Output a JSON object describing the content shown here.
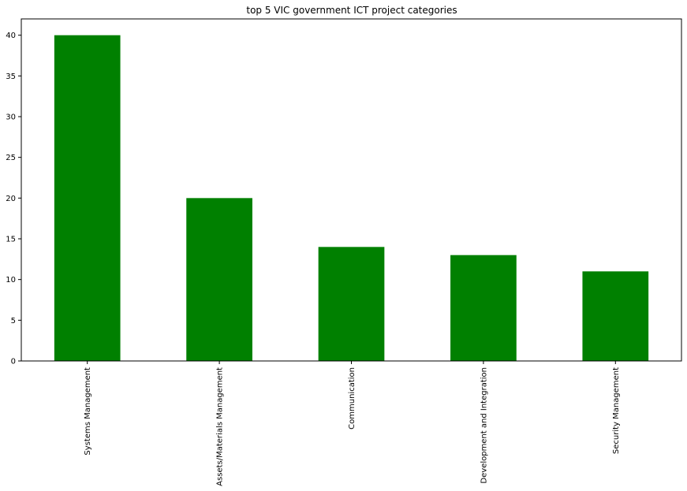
{
  "chart_data": {
    "type": "bar",
    "title": "top 5 VIC government ICT project categories",
    "categories": [
      "Systems Management",
      "Assets/Materials Management",
      "Communication",
      "Development and Integration",
      "Security Management"
    ],
    "values": [
      40,
      20,
      14,
      13,
      11
    ],
    "ylim": [
      0,
      42
    ],
    "yticks": [
      0,
      5,
      10,
      15,
      20,
      25,
      30,
      35,
      40
    ],
    "xlabel": "",
    "ylabel": "",
    "grid": false,
    "legend": "none",
    "bar_color": "#008000"
  }
}
